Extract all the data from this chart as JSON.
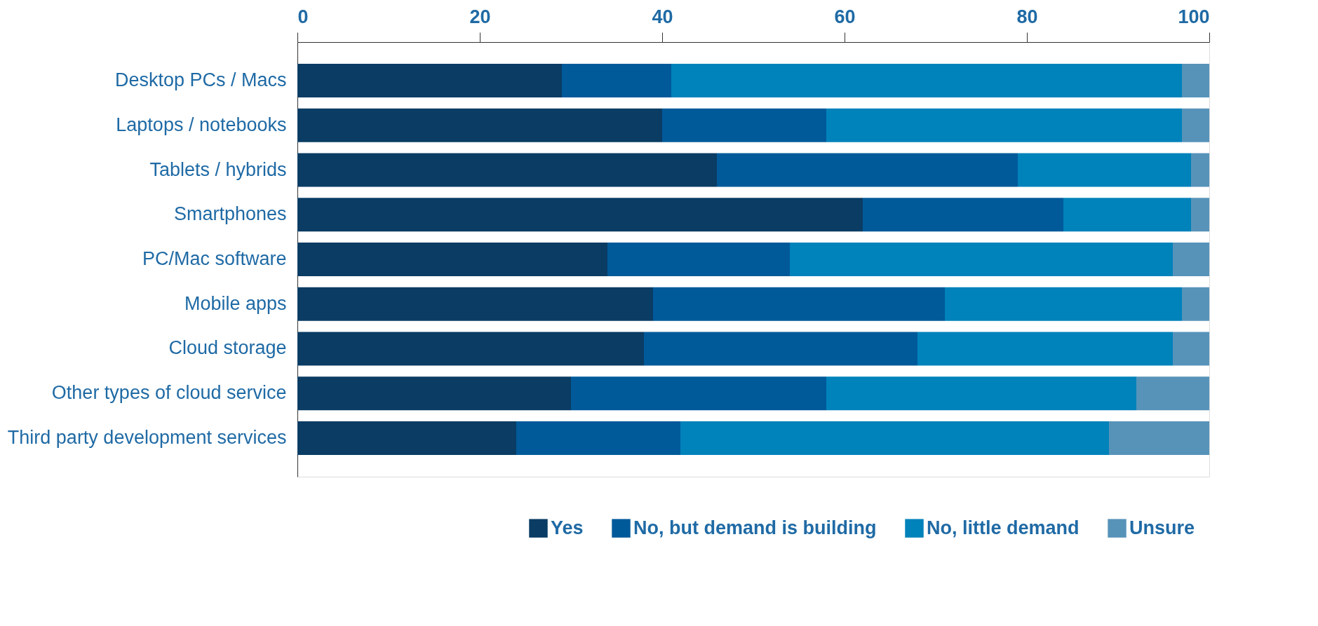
{
  "chart_data": {
    "type": "bar",
    "orientation": "horizontal",
    "stacked": true,
    "categories": [
      "Desktop PCs / Macs",
      "Laptops / notebooks",
      "Tablets / hybrids",
      "Smartphones",
      "PC/Mac software",
      "Mobile apps",
      "Cloud storage",
      "Other types of cloud service",
      "Third party development services"
    ],
    "series": [
      {
        "name": "Yes",
        "color": "#0a3c64",
        "values": [
          29,
          40,
          46,
          62,
          34,
          39,
          38,
          30,
          24
        ]
      },
      {
        "name": "No, but demand is building",
        "color": "#005a9a",
        "values": [
          12,
          18,
          33,
          22,
          20,
          32,
          30,
          28,
          18
        ]
      },
      {
        "name": "No, little demand",
        "color": "#0082bb",
        "values": [
          56,
          39,
          19,
          14,
          42,
          26,
          28,
          34,
          47
        ]
      },
      {
        "name": "Unsure",
        "color": "#5793b9",
        "values": [
          3,
          3,
          2,
          2,
          4,
          3,
          4,
          8,
          11
        ]
      }
    ],
    "xlim": [
      0,
      100
    ],
    "xticks": [
      0,
      20,
      40,
      60,
      80,
      100
    ],
    "grid": false,
    "legend": "bottom right"
  }
}
